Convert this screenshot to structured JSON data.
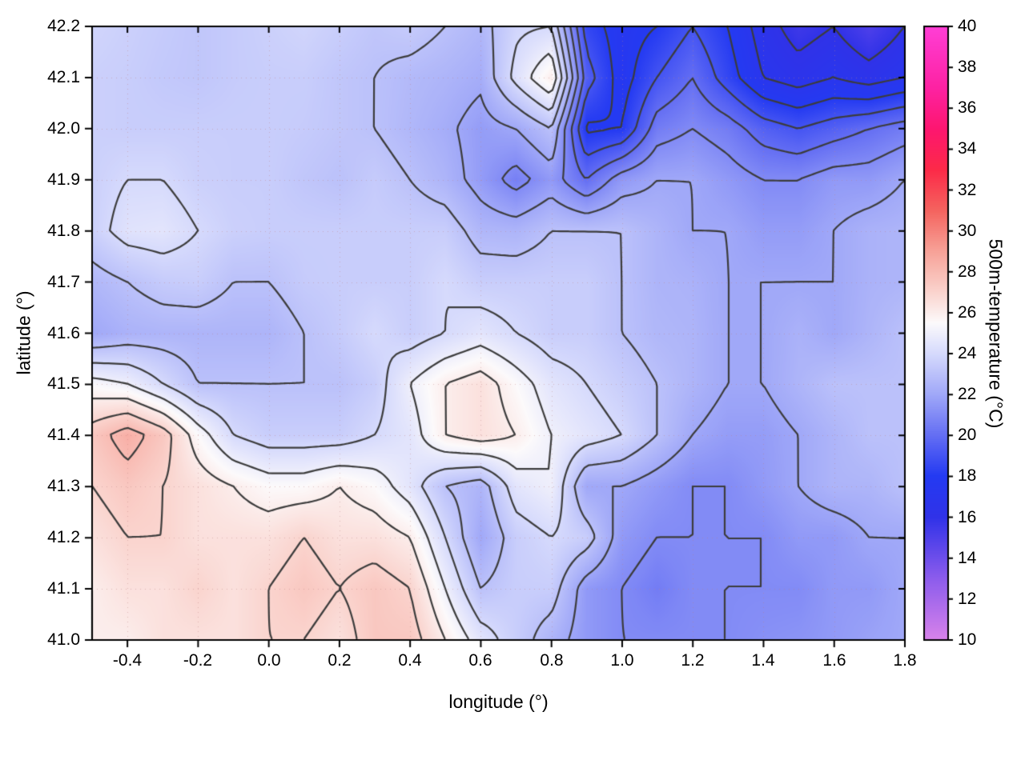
{
  "figure": {
    "background": "#ffffff",
    "frame_color": "#000000",
    "contour_color": "#3c3c3c",
    "grid_color": "rgba(190,130,130,0.45)"
  },
  "chart_data": {
    "type": "heatmap",
    "title": "",
    "xlabel": "longitude (°)",
    "ylabel": "latitude (°)",
    "colorbar_label": "500m-temperature (°C)",
    "xlim": [
      -0.5,
      1.8
    ],
    "ylim": [
      41.0,
      42.2
    ],
    "clim": [
      10,
      40
    ],
    "grid": true,
    "x_ticks": {
      "values": [
        -0.4,
        -0.2,
        0.0,
        0.2,
        0.4,
        0.6,
        0.8,
        1.0,
        1.2,
        1.4,
        1.6,
        1.8
      ],
      "labels": [
        "-0.4",
        "-0.2",
        "0.0",
        "0.2",
        "0.4",
        "0.6",
        "0.8",
        "1.0",
        "1.2",
        "1.4",
        "1.6",
        "1.8"
      ]
    },
    "y_ticks": {
      "values": [
        41.0,
        41.1,
        41.2,
        41.3,
        41.4,
        41.5,
        41.6,
        41.7,
        41.8,
        41.9,
        42.0,
        42.1,
        42.2
      ],
      "labels": [
        "41.0",
        "41.1",
        "41.2",
        "41.3",
        "41.4",
        "41.5",
        "41.6",
        "41.7",
        "41.8",
        "41.9",
        "42.0",
        "42.1",
        "42.2"
      ]
    },
    "colorbar_ticks": {
      "values": [
        10,
        12,
        14,
        16,
        18,
        20,
        22,
        24,
        26,
        28,
        30,
        32,
        34,
        36,
        38,
        40
      ],
      "labels": [
        "10",
        "12",
        "14",
        "16",
        "18",
        "20",
        "22",
        "24",
        "26",
        "28",
        "30",
        "32",
        "34",
        "36",
        "38",
        "40"
      ]
    },
    "lon_points": [
      -0.5,
      -0.4,
      -0.3,
      -0.2,
      -0.1,
      0.0,
      0.1,
      0.2,
      0.3,
      0.4,
      0.5,
      0.6,
      0.7,
      0.8,
      0.9,
      1.0,
      1.1,
      1.2,
      1.3,
      1.4,
      1.5,
      1.6,
      1.7,
      1.8
    ],
    "lat_points_north_to_south": [
      42.2,
      42.1,
      42.0,
      41.9,
      41.8,
      41.7,
      41.6,
      41.5,
      41.4,
      41.3,
      41.2,
      41.1,
      41.0
    ],
    "temperature_c_north_to_south": [
      [
        23.8,
        23.6,
        23.4,
        23.2,
        23.4,
        23.6,
        23.8,
        23.5,
        23.2,
        23.4,
        23.0,
        22.6,
        23.8,
        24.0,
        18.5,
        17.5,
        18.0,
        19.0,
        18.0,
        16.5,
        15.5,
        16.0,
        15.0,
        16.0
      ],
      [
        23.6,
        23.5,
        23.3,
        23.2,
        23.4,
        23.5,
        23.5,
        23.2,
        23.0,
        22.7,
        22.5,
        22.2,
        24.3,
        26.0,
        19.5,
        17.5,
        19.0,
        20.0,
        18.5,
        17.0,
        16.5,
        17.0,
        16.5,
        17.0
      ],
      [
        23.6,
        23.5,
        23.5,
        23.5,
        23.5,
        23.5,
        23.4,
        23.2,
        23.0,
        22.6,
        22.2,
        21.6,
        22.0,
        23.0,
        17.8,
        18.0,
        20.5,
        21.0,
        20.5,
        19.5,
        19.0,
        19.5,
        20.0,
        20.5
      ],
      [
        23.6,
        24.0,
        24.0,
        23.6,
        23.5,
        23.5,
        23.2,
        23.0,
        23.4,
        23.0,
        22.5,
        21.6,
        20.6,
        21.5,
        20.0,
        21.5,
        22.0,
        22.0,
        21.5,
        21.0,
        21.0,
        21.5,
        21.5,
        22.0
      ],
      [
        23.6,
        24.4,
        24.5,
        24.0,
        23.6,
        23.5,
        23.5,
        23.5,
        23.5,
        23.5,
        23.5,
        22.6,
        22.5,
        23.0,
        23.0,
        23.0,
        22.5,
        22.0,
        22.0,
        21.6,
        21.6,
        22.0,
        22.4,
        22.5
      ],
      [
        22.6,
        23.0,
        23.4,
        23.5,
        23.0,
        23.0,
        23.4,
        23.5,
        23.5,
        23.5,
        24.0,
        23.5,
        23.5,
        23.5,
        23.5,
        23.0,
        22.5,
        22.4,
        22.0,
        22.0,
        22.0,
        22.0,
        22.4,
        22.5
      ],
      [
        22.0,
        22.4,
        22.5,
        22.5,
        22.5,
        22.5,
        23.0,
        23.4,
        24.0,
        23.5,
        24.0,
        24.5,
        24.0,
        23.5,
        23.5,
        23.0,
        22.6,
        22.5,
        22.0,
        22.0,
        22.4,
        22.0,
        22.5,
        23.0
      ],
      [
        25.4,
        25.0,
        24.0,
        23.0,
        23.0,
        23.0,
        23.0,
        23.0,
        23.5,
        25.0,
        26.0,
        26.5,
        25.5,
        24.5,
        24.0,
        23.5,
        23.0,
        22.5,
        22.0,
        22.0,
        22.5,
        23.0,
        23.0,
        23.0
      ],
      [
        27.5,
        28.5,
        27.5,
        25.5,
        24.0,
        23.5,
        23.5,
        23.5,
        24.0,
        24.5,
        26.0,
        26.5,
        26.0,
        25.0,
        24.5,
        24.0,
        23.0,
        22.0,
        21.6,
        21.6,
        22.0,
        22.5,
        23.0,
        23.0
      ],
      [
        27.0,
        27.5,
        27.0,
        26.5,
        26.0,
        25.5,
        25.5,
        26.0,
        25.5,
        24.5,
        23.0,
        22.5,
        24.5,
        25.0,
        22.0,
        22.0,
        21.5,
        21.0,
        21.0,
        21.5,
        22.0,
        22.5,
        22.5,
        23.0
      ],
      [
        26.5,
        27.0,
        27.0,
        26.5,
        26.5,
        26.5,
        27.0,
        26.5,
        26.5,
        26.0,
        24.0,
        22.0,
        23.5,
        24.0,
        23.5,
        21.5,
        21.0,
        21.0,
        21.0,
        21.0,
        21.5,
        21.5,
        22.0,
        22.0
      ],
      [
        26.0,
        26.5,
        26.5,
        27.0,
        26.5,
        27.0,
        27.5,
        27.0,
        27.5,
        27.0,
        25.0,
        23.0,
        23.5,
        23.5,
        21.5,
        21.0,
        20.5,
        21.0,
        21.0,
        21.0,
        21.0,
        21.5,
        21.5,
        22.0
      ],
      [
        26.0,
        26.0,
        26.5,
        26.5,
        26.5,
        27.0,
        27.0,
        26.5,
        27.5,
        27.5,
        26.0,
        24.5,
        23.5,
        22.5,
        21.5,
        21.0,
        21.0,
        21.0,
        21.0,
        21.2,
        21.3,
        21.5,
        21.8,
        22.0
      ]
    ],
    "contour_levels_c": [
      16,
      17,
      18,
      19,
      20,
      21,
      22,
      23,
      24,
      25,
      26,
      27,
      28
    ],
    "palette_stops": [
      [
        10,
        "#d882ea"
      ],
      [
        13,
        "#8c5cec"
      ],
      [
        16,
        "#3032e8"
      ],
      [
        18,
        "#243af2"
      ],
      [
        20,
        "#646ef3"
      ],
      [
        22,
        "#a0a8f8"
      ],
      [
        24,
        "#d6dafc"
      ],
      [
        25.5,
        "#fcfafb"
      ],
      [
        27,
        "#fad4ce"
      ],
      [
        29,
        "#f7a298"
      ],
      [
        31,
        "#f4645f"
      ],
      [
        33,
        "#fc2a48"
      ],
      [
        35,
        "#fd1670"
      ],
      [
        37,
        "#fd22a2"
      ],
      [
        40,
        "#ff3ed6"
      ]
    ]
  }
}
